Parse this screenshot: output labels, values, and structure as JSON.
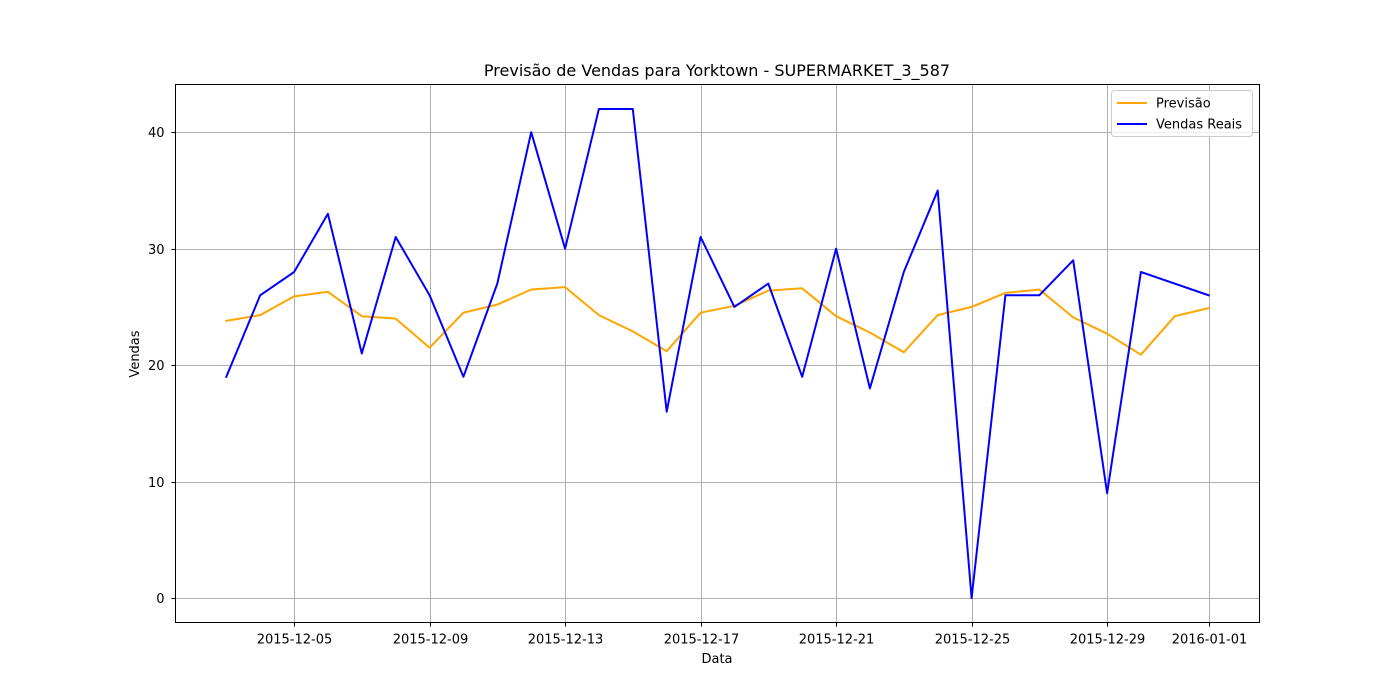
{
  "chart_data": {
    "type": "line",
    "title": "Previsão de Vendas para Yorktown - SUPERMARKET_3_587",
    "xlabel": "Data",
    "ylabel": "Vendas",
    "x": [
      "2015-12-03",
      "2015-12-04",
      "2015-12-05",
      "2015-12-06",
      "2015-12-07",
      "2015-12-08",
      "2015-12-09",
      "2015-12-10",
      "2015-12-11",
      "2015-12-12",
      "2015-12-13",
      "2015-12-14",
      "2015-12-15",
      "2015-12-16",
      "2015-12-17",
      "2015-12-18",
      "2015-12-19",
      "2015-12-20",
      "2015-12-21",
      "2015-12-22",
      "2015-12-23",
      "2015-12-24",
      "2015-12-25",
      "2015-12-26",
      "2015-12-27",
      "2015-12-28",
      "2015-12-29",
      "2015-12-30",
      "2015-12-31",
      "2016-01-01"
    ],
    "xlim": [
      "2015-12-01T12:00",
      "2016-01-02T12:00"
    ],
    "ylim": [
      -2.1,
      44.1
    ],
    "xticks": [
      "2015-12-05",
      "2015-12-09",
      "2015-12-13",
      "2015-12-17",
      "2015-12-21",
      "2015-12-25",
      "2015-12-29",
      "2016-01-01"
    ],
    "yticks": [
      0,
      10,
      20,
      30,
      40
    ],
    "grid": true,
    "legend_position": "top-right",
    "series": [
      {
        "name": "Previsão",
        "color": "#ffa500",
        "values": [
          23.8,
          24.3,
          25.9,
          26.3,
          24.2,
          24.0,
          21.5,
          24.5,
          25.2,
          26.5,
          26.7,
          24.3,
          22.9,
          21.2,
          24.5,
          25.1,
          26.4,
          26.6,
          24.2,
          22.8,
          21.1,
          24.3,
          25.0,
          26.2,
          26.5,
          24.1,
          22.7,
          20.9,
          24.2,
          24.9
        ]
      },
      {
        "name": "Vendas Reais",
        "color": "#0000ff",
        "values": [
          19,
          26,
          28,
          33,
          21,
          31,
          26,
          19,
          27,
          40,
          30,
          42,
          42,
          16,
          31,
          25,
          27,
          19,
          30,
          18,
          28,
          35,
          0,
          26,
          26,
          29,
          9,
          28,
          null,
          26
        ]
      }
    ]
  }
}
